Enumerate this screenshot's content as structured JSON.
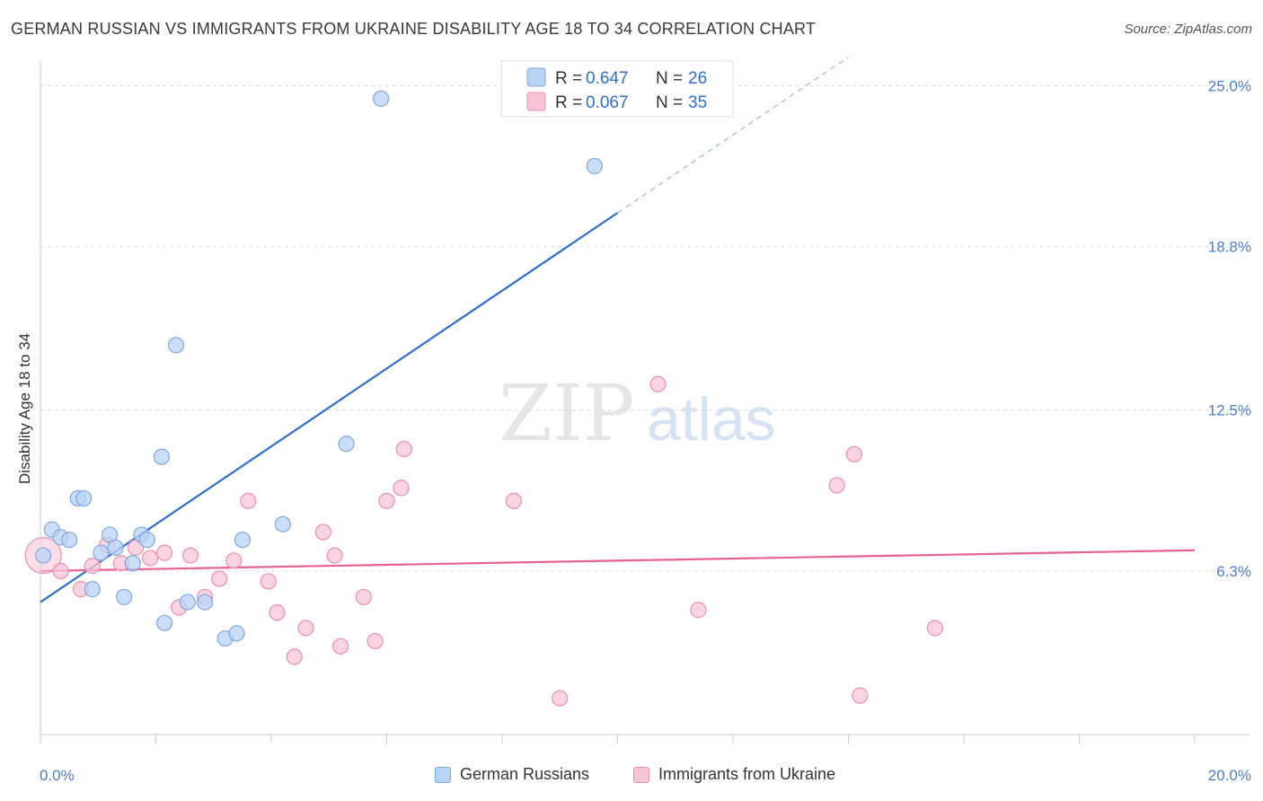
{
  "title": "GERMAN RUSSIAN VS IMMIGRANTS FROM UKRAINE DISABILITY AGE 18 TO 34 CORRELATION CHART",
  "source": "Source: ZipAtlas.com",
  "watermark": {
    "zip": "ZIP",
    "atlas": "atlas"
  },
  "colors": {
    "blue_fill": "#b9d3f5",
    "blue_stroke": "#7fa9e0",
    "blue_line": "#2f6fce",
    "pink_fill": "#f8c6d5",
    "pink_stroke": "#ea90ad",
    "pink_line": "#e8628e",
    "tick_text": "#4a7fd0",
    "grid": "#dddddd"
  },
  "legend_top": [
    {
      "r_label": "R = ",
      "r_value": "0.647",
      "n_label": "N = ",
      "n_value": "26"
    },
    {
      "r_label": "R = ",
      "r_value": "0.067",
      "n_label": "N = ",
      "n_value": "35"
    }
  ],
  "legend_bottom": [
    "German Russians",
    "Immigrants from Ukraine"
  ],
  "chart_data": {
    "type": "scatter",
    "title": "GERMAN RUSSIAN VS IMMIGRANTS FROM UKRAINE DISABILITY AGE 18 TO 34 CORRELATION CHART",
    "xlabel": "",
    "ylabel": "Disability Age 18 to 34",
    "xlim": [
      0,
      20
    ],
    "ylim": [
      0,
      25.6
    ],
    "x_tick_labels": [
      "0.0%",
      "20.0%"
    ],
    "y_ticks": [
      6.3,
      12.5,
      18.8,
      25.0
    ],
    "y_tick_labels": [
      "6.3%",
      "12.5%",
      "18.8%",
      "25.0%"
    ],
    "series": [
      {
        "name": "German Russians",
        "R": 0.647,
        "N": 26,
        "trend": {
          "x0": 0,
          "y0": 5.1,
          "x1": 10,
          "y1": 20.1,
          "dashed_to_x": 14.0
        },
        "points": [
          [
            0.05,
            6.9
          ],
          [
            0.2,
            7.9
          ],
          [
            0.35,
            7.6
          ],
          [
            0.5,
            7.5
          ],
          [
            0.65,
            9.1
          ],
          [
            0.75,
            9.1
          ],
          [
            0.9,
            5.6
          ],
          [
            1.05,
            7.0
          ],
          [
            1.2,
            7.7
          ],
          [
            1.3,
            7.2
          ],
          [
            1.45,
            5.3
          ],
          [
            1.6,
            6.6
          ],
          [
            1.75,
            7.7
          ],
          [
            1.85,
            7.5
          ],
          [
            2.1,
            10.7
          ],
          [
            2.15,
            4.3
          ],
          [
            2.35,
            15.0
          ],
          [
            2.55,
            5.1
          ],
          [
            2.85,
            5.1
          ],
          [
            3.2,
            3.7
          ],
          [
            3.4,
            3.9
          ],
          [
            3.5,
            7.5
          ],
          [
            4.2,
            8.1
          ],
          [
            5.3,
            11.2
          ],
          [
            5.9,
            24.5
          ],
          [
            9.6,
            21.9
          ]
        ]
      },
      {
        "name": "Immigrants from Ukraine",
        "R": 0.067,
        "N": 35,
        "trend": {
          "x0": 0,
          "y0": 6.3,
          "x1": 20,
          "y1": 7.1
        },
        "points": [
          [
            0.05,
            6.9
          ],
          [
            0.35,
            6.3
          ],
          [
            0.7,
            5.6
          ],
          [
            0.9,
            6.5
          ],
          [
            1.15,
            7.3
          ],
          [
            1.4,
            6.6
          ],
          [
            1.65,
            7.2
          ],
          [
            1.9,
            6.8
          ],
          [
            2.15,
            7.0
          ],
          [
            2.4,
            4.9
          ],
          [
            2.6,
            6.9
          ],
          [
            2.85,
            5.3
          ],
          [
            3.1,
            6.0
          ],
          [
            3.35,
            6.7
          ],
          [
            3.6,
            9.0
          ],
          [
            3.95,
            5.9
          ],
          [
            4.1,
            4.7
          ],
          [
            4.4,
            3.0
          ],
          [
            4.6,
            4.1
          ],
          [
            4.9,
            7.8
          ],
          [
            5.1,
            6.9
          ],
          [
            5.2,
            3.4
          ],
          [
            5.6,
            5.3
          ],
          [
            5.8,
            3.6
          ],
          [
            6.0,
            9.0
          ],
          [
            6.25,
            9.5
          ],
          [
            6.3,
            11.0
          ],
          [
            8.2,
            9.0
          ],
          [
            9.0,
            1.4
          ],
          [
            10.7,
            13.5
          ],
          [
            11.4,
            4.8
          ],
          [
            13.8,
            9.6
          ],
          [
            14.1,
            10.8
          ],
          [
            14.2,
            1.5
          ],
          [
            15.5,
            4.1
          ]
        ]
      }
    ]
  }
}
